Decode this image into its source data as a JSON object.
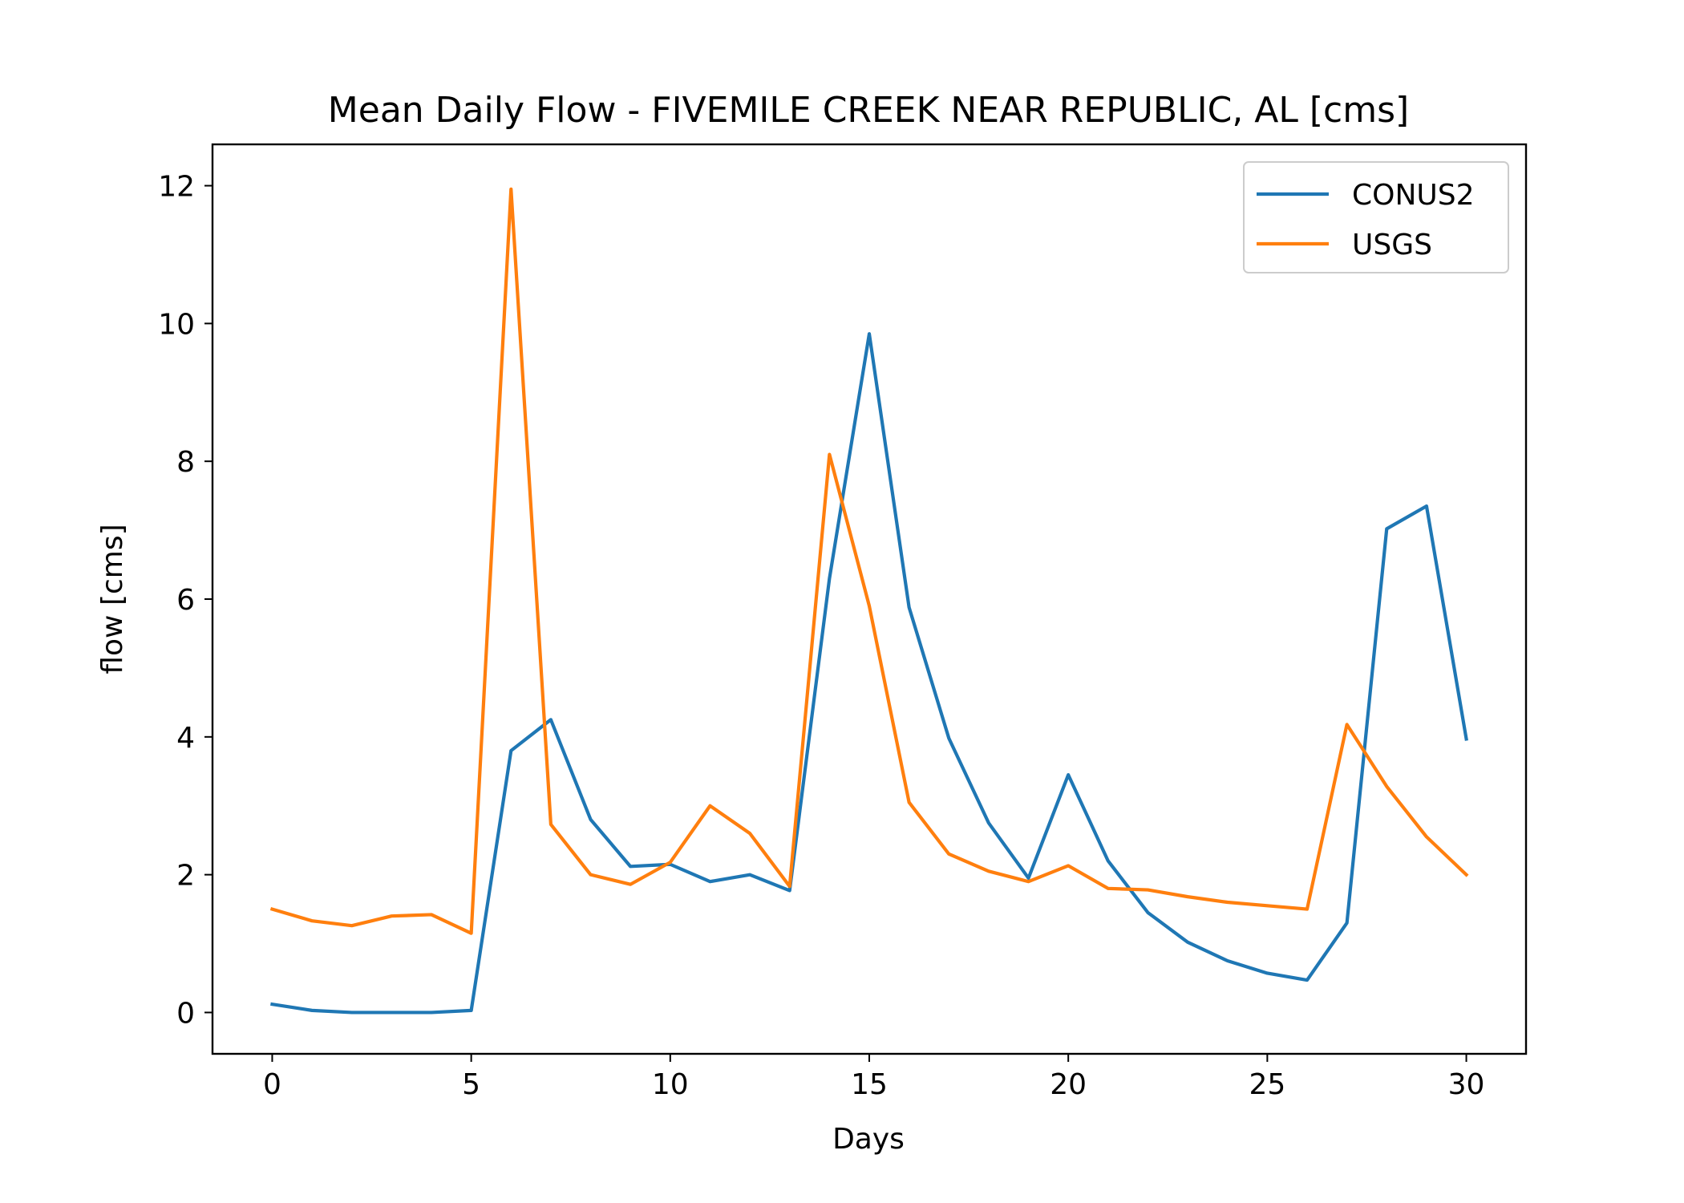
{
  "chart_data": {
    "type": "line",
    "title": "Mean Daily Flow - FIVEMILE CREEK NEAR REPUBLIC, AL [cms]",
    "xlabel": "Days",
    "ylabel": "flow [cms]",
    "xlim": [
      -1.5,
      31.5
    ],
    "ylim": [
      -0.6,
      12.6
    ],
    "xticks": [
      0,
      5,
      10,
      15,
      20,
      25,
      30
    ],
    "xtick_labels": [
      "0",
      "5",
      "10",
      "15",
      "20",
      "25",
      "30"
    ],
    "yticks": [
      0,
      2,
      4,
      6,
      8,
      10,
      12
    ],
    "ytick_labels": [
      "0",
      "2",
      "4",
      "6",
      "8",
      "10",
      "12"
    ],
    "grid": false,
    "legend_position": "top-right",
    "x": [
      0,
      1,
      2,
      3,
      4,
      5,
      6,
      7,
      8,
      9,
      10,
      11,
      12,
      13,
      14,
      15,
      16,
      17,
      18,
      19,
      20,
      21,
      22,
      23,
      24,
      25,
      26,
      27,
      28,
      29,
      30
    ],
    "series": [
      {
        "name": "CONUS2",
        "color": "#1f77b4",
        "values": [
          0.12,
          0.03,
          0.0,
          0.0,
          0.0,
          0.03,
          3.8,
          4.25,
          2.8,
          2.12,
          2.15,
          1.9,
          2.0,
          1.77,
          6.3,
          9.85,
          5.88,
          3.98,
          2.75,
          1.95,
          3.45,
          2.2,
          1.45,
          1.02,
          0.75,
          0.57,
          0.47,
          1.3,
          7.02,
          7.35,
          3.97
        ]
      },
      {
        "name": "USGS",
        "color": "#ff7f0e",
        "values": [
          1.5,
          1.33,
          1.26,
          1.4,
          1.42,
          1.15,
          11.95,
          2.73,
          2.0,
          1.86,
          2.18,
          3.0,
          2.6,
          1.83,
          8.1,
          5.9,
          3.05,
          2.3,
          2.05,
          1.9,
          2.13,
          1.8,
          1.78,
          1.68,
          1.6,
          1.55,
          1.5,
          4.18,
          3.28,
          2.55,
          2.0
        ]
      }
    ]
  }
}
